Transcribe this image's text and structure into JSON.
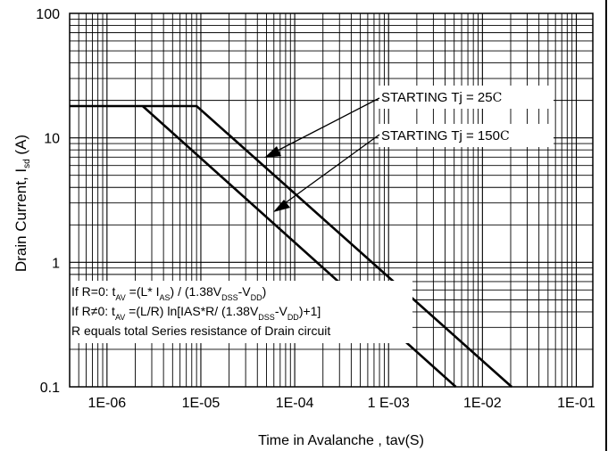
{
  "chart_data": {
    "type": "line",
    "xlabel": "Time in Avalanche , tav(S)",
    "ylabel_main": "Drain Current, I",
    "ylabel_sub": "sd",
    "ylabel_unit": " (A)",
    "x_scale": "log",
    "y_scale": "log",
    "xlim": [
      4e-07,
      0.15
    ],
    "ylim": [
      0.1,
      100
    ],
    "x_ticks": [
      {
        "v": 1e-06,
        "label": "1E-06"
      },
      {
        "v": 1e-05,
        "label": "1E-05"
      },
      {
        "v": 0.0001,
        "label": "1E-04"
      },
      {
        "v": 0.001,
        "label": "1 E-03"
      },
      {
        "v": 0.01,
        "label": "1E-02"
      },
      {
        "v": 0.1,
        "label": "1E-01"
      }
    ],
    "y_ticks": [
      {
        "v": 100,
        "label": "100"
      },
      {
        "v": 10,
        "label": "10"
      },
      {
        "v": 1,
        "label": "1"
      },
      {
        "v": 0.1,
        "label": "0.1"
      }
    ],
    "grid": true,
    "series": [
      {
        "points": [
          [
            4e-07,
            18
          ],
          [
            9e-06,
            18
          ],
          [
            0.0205,
            0.1
          ]
        ]
      },
      {
        "points": [
          [
            2.4e-06,
            18
          ],
          [
            0.0052,
            0.1
          ]
        ]
      }
    ],
    "annotations": [
      {
        "text": "STARTING Tj = 25",
        "unit": "C"
      },
      {
        "text": "STARTING Tj = 150",
        "unit": "C"
      }
    ],
    "notes": [
      [
        "If R=0: t",
        {
          "sub": "AV"
        },
        " =(L* I",
        {
          "sub": "AS"
        },
        ") / (1.38V",
        {
          "sub": "DSS"
        },
        "-V",
        {
          "sub": "DD"
        },
        ")"
      ],
      [
        "If R",
        "≠",
        "0: t",
        {
          "sub": "AV"
        },
        " =(L/R) ln[IAS*R/ (1.38V",
        {
          "sub": "DSS"
        },
        "-V",
        {
          "sub": "DD"
        },
        ")+1]"
      ],
      [
        "R equals total Series resistance of Drain circuit"
      ]
    ]
  }
}
